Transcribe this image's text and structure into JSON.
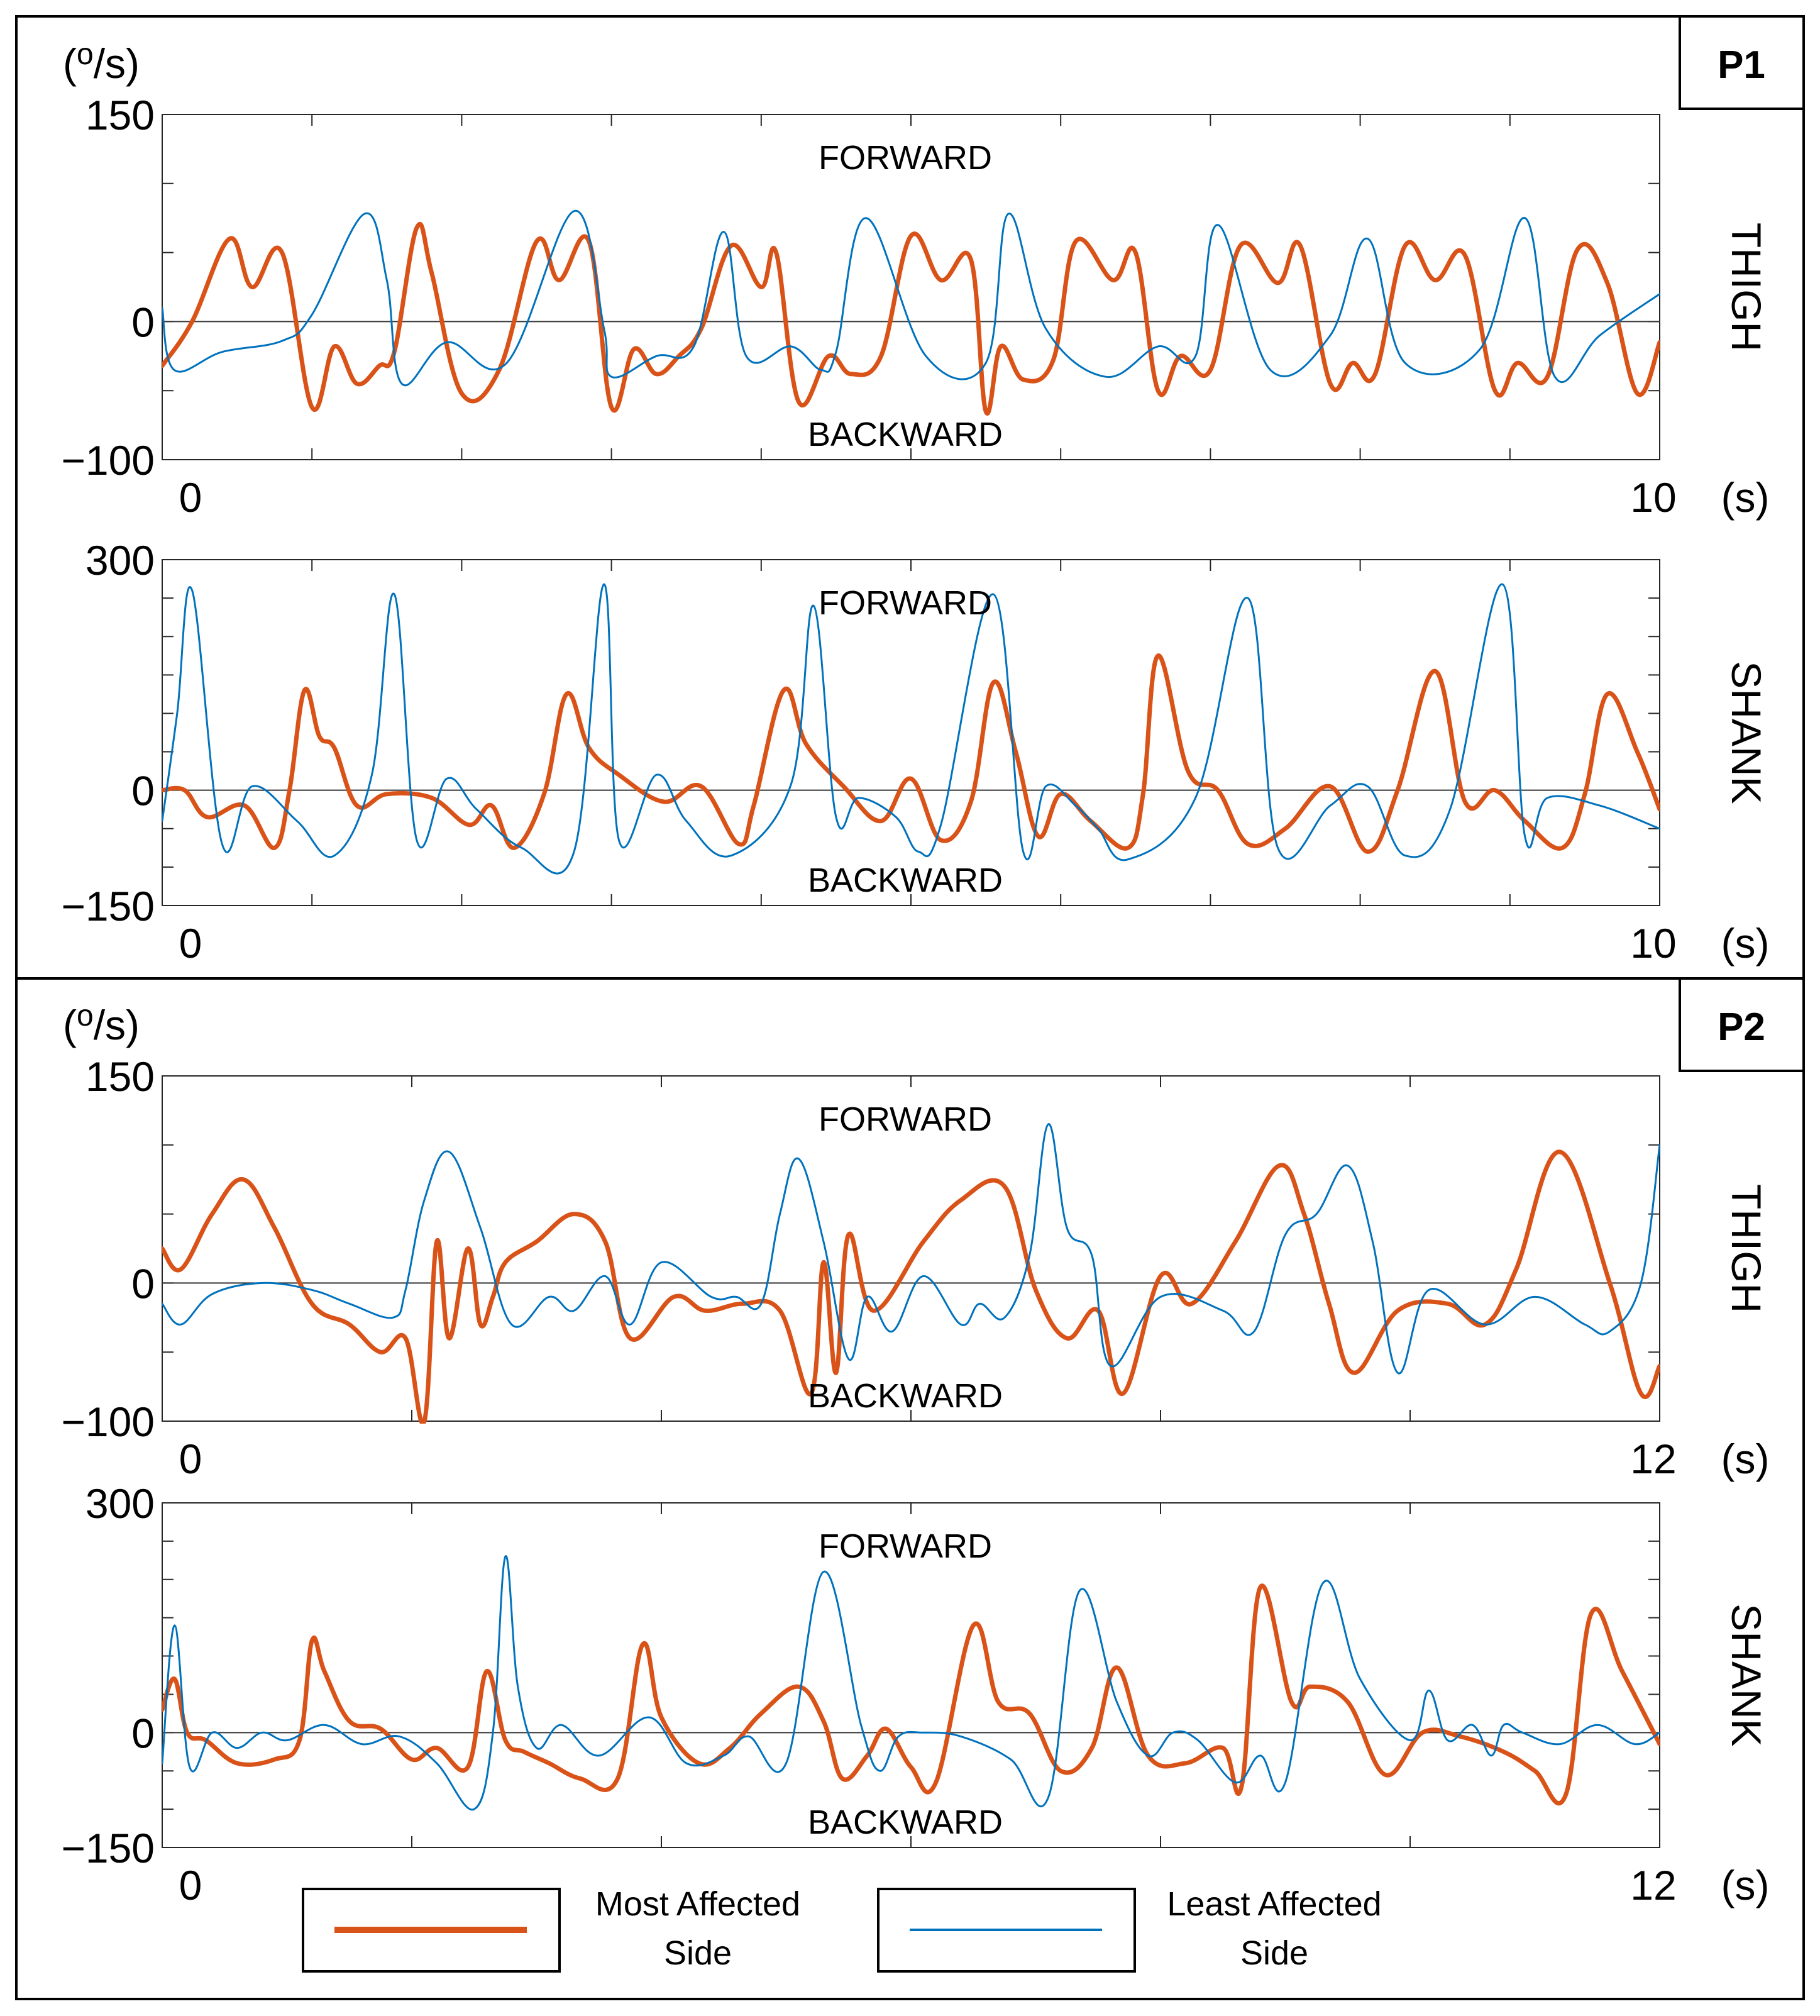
{
  "figure": {
    "legend": {
      "most_affected": {
        "line1": "Most Affected",
        "line2": "Side",
        "color": "#D95319"
      },
      "least_affected": {
        "line1": "Least Affected",
        "line2": "Side",
        "color": "#0072BD"
      }
    }
  },
  "chart_data": [
    {
      "type": "line",
      "panel": "P1",
      "unit_label": "(o/s)",
      "row_label": "THIGH",
      "xlabel": "(s)",
      "xlim": [
        0,
        10
      ],
      "x_ticks": [
        "0",
        "10"
      ],
      "ylim": [
        -100,
        150
      ],
      "y_ticks": [
        "150",
        "0",
        "−100"
      ],
      "annotations": {
        "top": "FORWARD",
        "bottom": "BACKWARD"
      },
      "series": [
        {
          "name": "Most Affected Side",
          "x": [
            0,
            0.2,
            0.45,
            0.6,
            0.8,
            1.0,
            1.15,
            1.3,
            1.45,
            1.55,
            1.7,
            1.8,
            2.0,
            2.25,
            2.5,
            2.65,
            2.85,
            3.0,
            3.15,
            3.3,
            3.45,
            3.6,
            3.8,
            4.0,
            4.1,
            4.25,
            4.45,
            4.6,
            4.8,
            5.0,
            5.2,
            5.4,
            5.5,
            5.6,
            5.75,
            5.95,
            6.1,
            6.35,
            6.5,
            6.65,
            6.8,
            7.0,
            7.2,
            7.45,
            7.6,
            7.8,
            7.95,
            8.1,
            8.3,
            8.5,
            8.7,
            8.9,
            9.05,
            9.25,
            9.45,
            9.65,
            9.85,
            10.0
          ],
          "y": [
            -32,
            0,
            60,
            25,
            50,
            -62,
            -18,
            -45,
            -32,
            -22,
            68,
            35,
            -52,
            -35,
            58,
            30,
            58,
            -62,
            -20,
            -38,
            -25,
            -5,
            55,
            25,
            50,
            -58,
            -25,
            -38,
            -25,
            62,
            30,
            45,
            -65,
            -18,
            -42,
            -28,
            58,
            30,
            50,
            -50,
            -25,
            -35,
            55,
            28,
            55,
            -45,
            -30,
            -38,
            55,
            30,
            48,
            -50,
            -30,
            -40,
            52,
            28,
            -52,
            -15
          ]
        },
        {
          "name": "Least Affected Side",
          "x": [
            0,
            0.08,
            0.4,
            0.8,
            1.0,
            1.35,
            1.5,
            1.6,
            1.9,
            2.3,
            2.75,
            2.95,
            3.0,
            3.3,
            3.55,
            3.75,
            3.9,
            4.2,
            4.4,
            4.5,
            4.7,
            5.1,
            5.5,
            5.65,
            5.9,
            6.3,
            6.65,
            6.9,
            7.05,
            7.4,
            7.8,
            8.05,
            8.3,
            8.8,
            9.1,
            9.3,
            9.6,
            10.0
          ],
          "y": [
            10,
            -35,
            -22,
            -14,
            5,
            78,
            30,
            -45,
            -15,
            -30,
            80,
            -5,
            -40,
            -25,
            -18,
            65,
            -25,
            -18,
            -35,
            -22,
            75,
            -25,
            -30,
            78,
            -5,
            -40,
            -18,
            -25,
            70,
            -35,
            -10,
            60,
            -30,
            -20,
            75,
            -40,
            -10,
            20
          ]
        }
      ]
    },
    {
      "type": "line",
      "panel": "P1",
      "row_label": "SHANK",
      "xlabel": "(s)",
      "xlim": [
        0,
        10
      ],
      "x_ticks": [
        "0",
        "10"
      ],
      "ylim": [
        -150,
        300
      ],
      "y_ticks": [
        "300",
        "0",
        "−150"
      ],
      "annotations": {
        "top": "FORWARD",
        "bottom": "BACKWARD"
      },
      "series": [
        {
          "name": "Most Affected Side",
          "x": [
            0,
            0.15,
            0.3,
            0.55,
            0.75,
            0.85,
            0.95,
            1.05,
            1.15,
            1.3,
            1.5,
            1.8,
            2.05,
            2.2,
            2.35,
            2.55,
            2.7,
            2.85,
            3.05,
            3.35,
            3.6,
            3.85,
            3.95,
            4.15,
            4.3,
            4.55,
            4.8,
            5.0,
            5.2,
            5.4,
            5.55,
            5.7,
            5.85,
            6.0,
            6.2,
            6.45,
            6.55,
            6.65,
            6.85,
            7.05,
            7.25,
            7.5,
            7.8,
            8.05,
            8.25,
            8.5,
            8.7,
            8.9,
            9.1,
            9.35,
            9.5,
            9.65,
            9.85,
            10.0
          ],
          "y": [
            0,
            0,
            -35,
            -20,
            -75,
            0,
            130,
            70,
            55,
            -20,
            -5,
            -10,
            -45,
            -20,
            -75,
            -5,
            125,
            55,
            20,
            -15,
            5,
            -70,
            -20,
            130,
            60,
            5,
            -40,
            15,
            -65,
            -15,
            140,
            50,
            -60,
            -5,
            -40,
            -75,
            -5,
            175,
            25,
            0,
            -70,
            -50,
            5,
            -80,
            0,
            155,
            -15,
            0,
            -40,
            -75,
            -5,
            125,
            50,
            -25
          ]
        },
        {
          "name": "Least Affected Side",
          "x": [
            0,
            0.1,
            0.2,
            0.4,
            0.6,
            0.9,
            1.15,
            1.4,
            1.55,
            1.7,
            1.9,
            2.1,
            2.4,
            2.75,
            2.95,
            3.05,
            3.3,
            3.5,
            3.8,
            4.2,
            4.35,
            4.5,
            4.65,
            4.9,
            5.05,
            5.2,
            5.55,
            5.75,
            5.9,
            6.1,
            6.25,
            6.45,
            6.9,
            7.25,
            7.45,
            7.8,
            8.05,
            8.3,
            8.6,
            8.95,
            9.1,
            9.25,
            9.6,
            10.0
          ],
          "y": [
            -40,
            100,
            260,
            -70,
            5,
            -40,
            -85,
            20,
            255,
            -65,
            15,
            -25,
            -75,
            -80,
            268,
            -65,
            20,
            -40,
            -85,
            8,
            240,
            -35,
            -10,
            -35,
            -80,
            -45,
            255,
            -80,
            5,
            -20,
            -50,
            -90,
            -10,
            250,
            -75,
            -20,
            5,
            -85,
            -25,
            268,
            -60,
            -10,
            -20,
            -50
          ]
        }
      ]
    },
    {
      "type": "line",
      "panel": "P2",
      "unit_label": "(o/s)",
      "row_label": "THIGH",
      "xlabel": "(s)",
      "xlim": [
        0,
        12
      ],
      "x_ticks": [
        "0",
        "12"
      ],
      "ylim": [
        -100,
        150
      ],
      "y_ticks": [
        "150",
        "0",
        "−100"
      ],
      "annotations": {
        "top": "FORWARD",
        "bottom": "BACKWARD"
      },
      "series": [
        {
          "name": "Most Affected Side",
          "x": [
            0,
            0.15,
            0.4,
            0.65,
            0.9,
            1.2,
            1.5,
            1.75,
            1.95,
            2.1,
            2.2,
            2.3,
            2.45,
            2.55,
            2.65,
            2.75,
            3.0,
            3.3,
            3.55,
            3.75,
            4.1,
            4.35,
            4.65,
            4.95,
            5.2,
            5.3,
            5.4,
            5.5,
            5.7,
            6.1,
            6.4,
            6.75,
            7.0,
            7.25,
            7.5,
            7.7,
            8.0,
            8.25,
            8.6,
            8.95,
            9.15,
            9.35,
            9.55,
            9.9,
            10.3,
            10.6,
            10.85,
            11.2,
            11.6,
            11.85,
            12.0
          ],
          "y": [
            25,
            10,
            50,
            75,
            40,
            -15,
            -30,
            -50,
            -40,
            -100,
            30,
            -40,
            25,
            -30,
            -10,
            15,
            30,
            50,
            30,
            -40,
            -10,
            -20,
            -15,
            -20,
            -80,
            15,
            -65,
            35,
            -20,
            30,
            60,
            70,
            -5,
            -40,
            -20,
            -80,
            5,
            -15,
            30,
            85,
            50,
            -15,
            -65,
            -20,
            -15,
            -30,
            10,
            95,
            0,
            -80,
            -60
          ]
        },
        {
          "name": "Least Affected Side",
          "x": [
            0,
            0.15,
            0.4,
            0.8,
            1.2,
            1.5,
            1.85,
            1.95,
            2.1,
            2.3,
            2.55,
            2.8,
            3.1,
            3.3,
            3.55,
            3.75,
            4.0,
            4.4,
            4.6,
            4.8,
            4.95,
            5.1,
            5.3,
            5.5,
            5.65,
            5.85,
            6.1,
            6.4,
            6.55,
            6.75,
            6.95,
            7.1,
            7.25,
            7.45,
            7.6,
            8.0,
            8.5,
            8.75,
            9.0,
            9.25,
            9.5,
            9.7,
            9.9,
            10.15,
            10.6,
            11.0,
            11.4,
            11.6,
            11.85,
            12.0
          ],
          "y": [
            -15,
            -30,
            -8,
            0,
            -5,
            -15,
            -25,
            -5,
            60,
            95,
            40,
            -30,
            -10,
            -20,
            5,
            -30,
            15,
            -10,
            -10,
            -15,
            50,
            90,
            30,
            -55,
            -10,
            -35,
            5,
            -30,
            -15,
            -25,
            20,
            115,
            40,
            20,
            -60,
            -10,
            -20,
            -35,
            35,
            50,
            85,
            30,
            -65,
            -5,
            -30,
            -10,
            -30,
            -35,
            0,
            100
          ]
        }
      ]
    },
    {
      "type": "line",
      "panel": "P2",
      "row_label": "SHANK",
      "xlabel": "(s)",
      "xlim": [
        0,
        12
      ],
      "x_ticks": [
        "0",
        "12"
      ],
      "ylim": [
        -150,
        300
      ],
      "y_ticks": [
        "300",
        "0",
        "−150"
      ],
      "annotations": {
        "top": "FORWARD",
        "bottom": "BACKWARD"
      },
      "series": [
        {
          "name": "Most Affected Side",
          "x": [
            0,
            0.1,
            0.2,
            0.35,
            0.6,
            0.9,
            1.1,
            1.2,
            1.3,
            1.5,
            1.75,
            2.0,
            2.2,
            2.45,
            2.6,
            2.75,
            2.9,
            3.1,
            3.35,
            3.65,
            3.85,
            4.0,
            4.3,
            4.55,
            4.8,
            5.1,
            5.3,
            5.45,
            5.65,
            5.8,
            6.0,
            6.2,
            6.5,
            6.7,
            6.95,
            7.2,
            7.45,
            7.65,
            7.9,
            8.2,
            8.5,
            8.65,
            8.8,
            9.05,
            9.2,
            9.5,
            9.8,
            10.1,
            10.4,
            10.75,
            11.0,
            11.25,
            11.45,
            11.7,
            12.0
          ],
          "y": [
            30,
            70,
            0,
            -10,
            -40,
            -35,
            -10,
            120,
            80,
            15,
            5,
            -35,
            -20,
            -45,
            80,
            -10,
            -25,
            -40,
            -60,
            -60,
            115,
            20,
            -40,
            -20,
            25,
            60,
            15,
            -60,
            -30,
            5,
            -45,
            -65,
            140,
            40,
            25,
            -50,
            -20,
            85,
            -30,
            -40,
            -20,
            -70,
            190,
            40,
            60,
            40,
            -55,
            0,
            -5,
            -25,
            -50,
            -80,
            155,
            80,
            -15
          ]
        },
        {
          "name": "Least Affected Side",
          "x": [
            0,
            0.1,
            0.22,
            0.4,
            0.6,
            0.8,
            1.0,
            1.3,
            1.6,
            1.9,
            2.2,
            2.5,
            2.65,
            2.75,
            2.85,
            3.0,
            3.2,
            3.5,
            3.9,
            4.2,
            4.5,
            4.7,
            5.0,
            5.3,
            5.6,
            5.75,
            5.9,
            6.1,
            6.4,
            6.8,
            7.1,
            7.35,
            7.65,
            7.9,
            8.1,
            8.3,
            8.6,
            8.8,
            9.0,
            9.3,
            9.6,
            10.0,
            10.15,
            10.3,
            10.5,
            10.65,
            10.75,
            10.9,
            11.2,
            11.5,
            11.8,
            12.0
          ],
          "y": [
            -40,
            140,
            -45,
            0,
            -20,
            0,
            -10,
            10,
            -15,
            -5,
            -40,
            -100,
            0,
            230,
            60,
            -20,
            10,
            -30,
            20,
            -40,
            -30,
            -5,
            -40,
            210,
            10,
            -50,
            -5,
            0,
            -5,
            -35,
            -85,
            185,
            40,
            -30,
            0,
            -10,
            -65,
            -30,
            -65,
            195,
            70,
            -10,
            55,
            -10,
            10,
            -30,
            10,
            0,
            -15,
            10,
            -15,
            0
          ]
        }
      ]
    }
  ],
  "panels": {
    "p1": {
      "label": "P1"
    },
    "p2": {
      "label": "P2"
    }
  }
}
